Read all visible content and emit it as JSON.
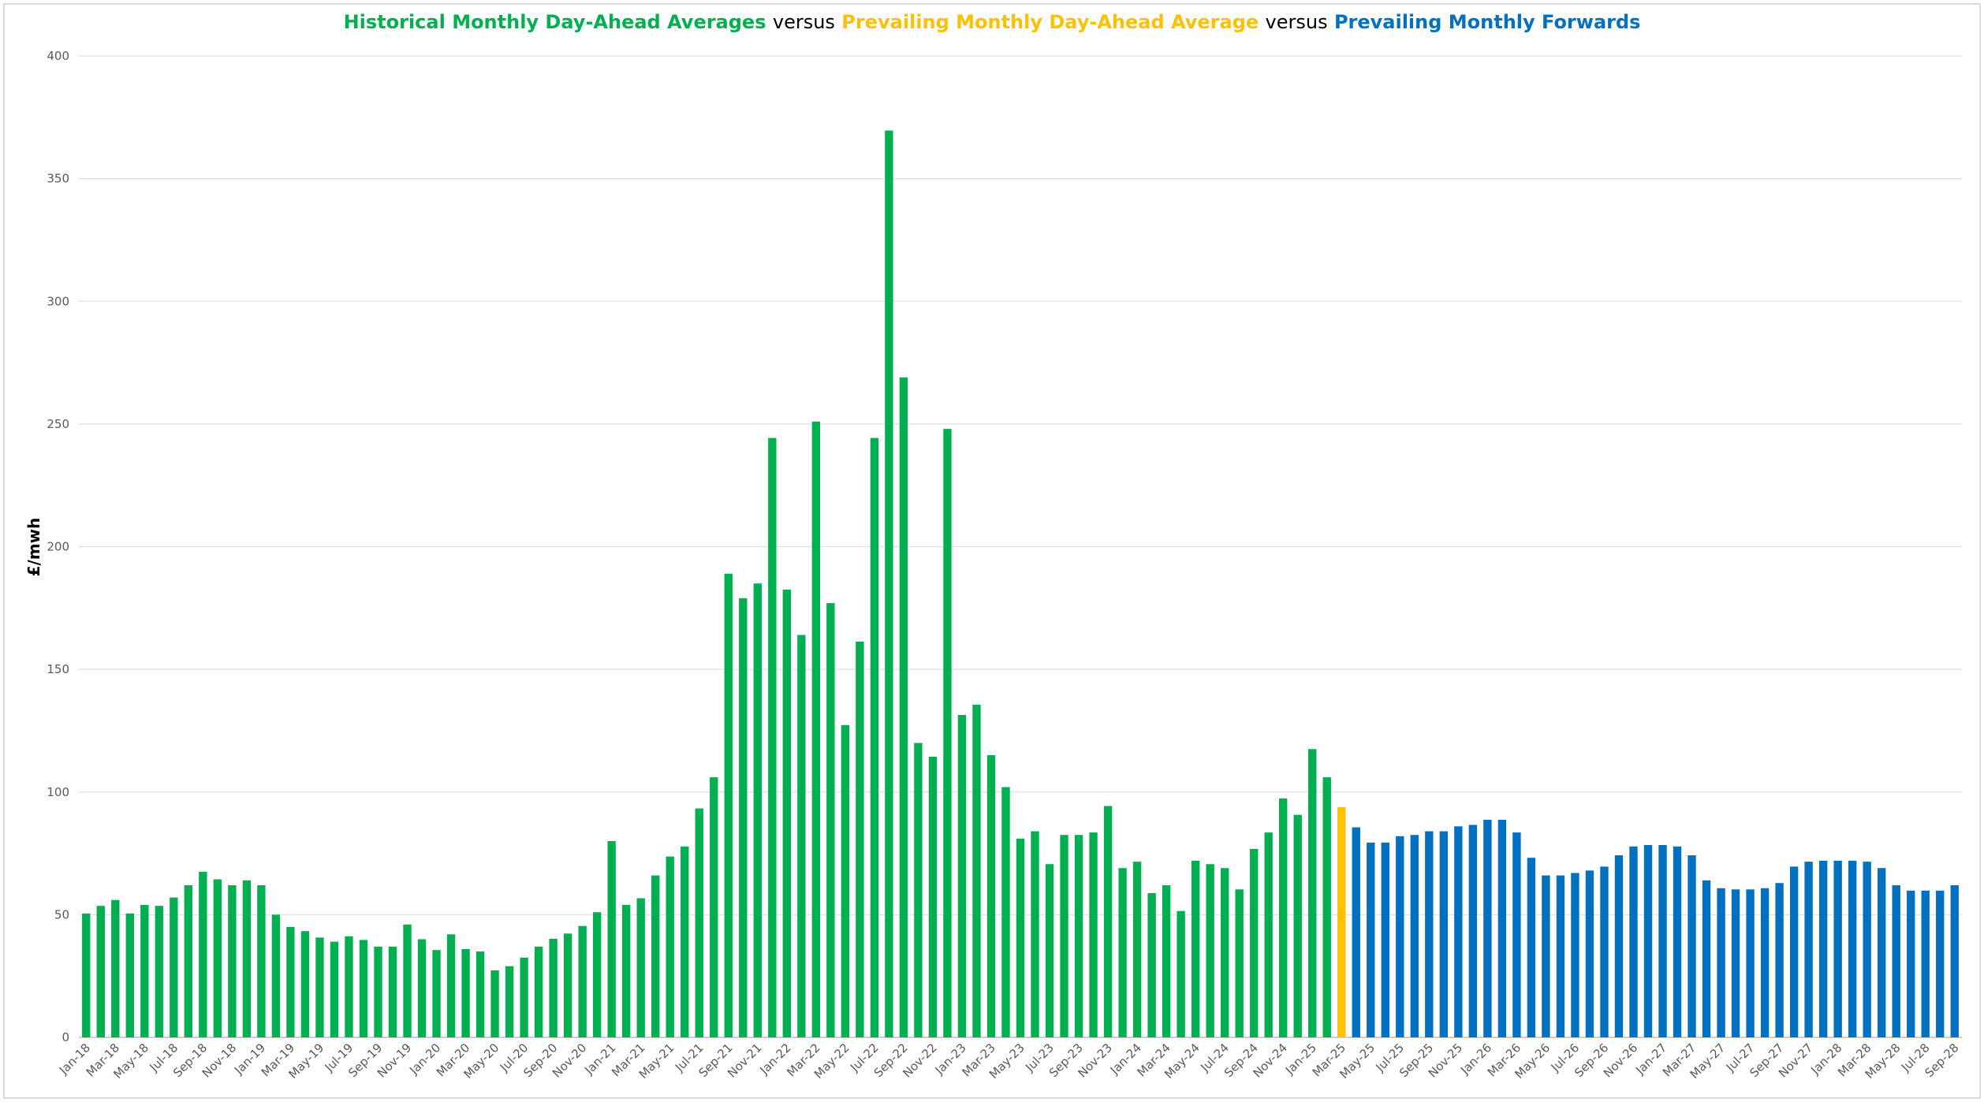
{
  "chart_data": {
    "type": "bar",
    "title_connector": "versus",
    "ylabel": "£/mwh",
    "ylim": [
      0,
      400
    ],
    "yticks": [
      0,
      50,
      100,
      150,
      200,
      250,
      300,
      350,
      400
    ],
    "grid": true,
    "categories": [
      "Jan-18",
      null,
      "Mar-18",
      null,
      "May-18",
      null,
      "Jul-18",
      null,
      "Sep-18",
      null,
      "Nov-18",
      null,
      "Jan-19",
      null,
      "Mar-19",
      null,
      "May-19",
      null,
      "Jul-19",
      null,
      "Sep-19",
      null,
      "Nov-19",
      null,
      "Jan-20",
      null,
      "Mar-20",
      null,
      "May-20",
      null,
      "Jul-20",
      null,
      "Sep-20",
      null,
      "Nov-20",
      null,
      "Jan-21",
      null,
      "Mar-21",
      null,
      "May-21",
      null,
      "Jul-21",
      null,
      "Sep-21",
      null,
      "Nov-21",
      null,
      "Jan-22",
      null,
      "Mar-22",
      null,
      "May-22",
      null,
      "Jul-22",
      null,
      "Sep-22",
      null,
      "Nov-22",
      null,
      "Jan-23",
      null,
      "Mar-23",
      null,
      "May-23",
      null,
      "Jul-23",
      null,
      "Sep-23",
      null,
      "Nov-23",
      null,
      "Jan-24",
      null,
      "Mar-24",
      null,
      "May-24",
      null,
      "Jul-24",
      null,
      "Sep-24",
      null,
      "Nov-24",
      null,
      "Jan-25",
      null,
      "Mar-25",
      null,
      "May-25",
      null,
      "Jul-25",
      null,
      "Sep-25",
      null,
      "Nov-25",
      null,
      "Jan-26",
      null,
      "Mar-26",
      null,
      "May-26",
      null,
      "Jul-26",
      null,
      "Sep-26",
      null,
      "Nov-26",
      null,
      "Jan-27",
      null,
      "Mar-27",
      null,
      "May-27",
      null,
      "Jul-27",
      null,
      "Sep-27",
      null,
      "Nov-27",
      null,
      "Jan-28",
      null,
      "Mar-28",
      null,
      "May-28",
      null,
      "Jul-28",
      null,
      "Sep-28"
    ],
    "series": [
      {
        "name": "Historical Monthly Day-Ahead Averages",
        "color": "#00b050",
        "values": [
          50.5,
          53.6,
          56,
          50.5,
          54,
          53.6,
          57,
          62,
          67.5,
          64.4,
          62,
          64,
          62,
          50,
          45,
          43.3,
          40.7,
          39,
          41.2,
          39.7,
          37,
          37,
          46,
          40,
          35.6,
          42,
          36,
          35,
          27.3,
          29,
          32.5,
          37,
          40.2,
          42.3,
          45.4,
          51,
          80,
          54,
          56.7,
          66,
          73.7,
          77.8,
          93.3,
          106,
          189,
          179,
          185,
          244.3,
          182.5,
          164,
          251,
          177,
          127.3,
          161.3,
          244.3,
          369.6,
          269,
          120,
          114.4,
          248,
          131.4,
          135.6,
          115,
          102,
          81,
          84,
          70.6,
          82.5,
          82.5,
          83.5,
          94.3,
          69,
          71.6,
          58.8,
          62,
          51.5,
          72,
          70.6,
          69,
          60.3,
          76.8,
          83.5,
          97.4,
          90.7,
          117.5,
          106,
          null,
          null,
          null,
          null,
          null,
          null,
          null,
          null,
          null,
          null,
          null,
          null,
          null,
          null,
          null,
          null,
          null,
          null,
          null,
          null,
          null,
          null,
          null,
          null,
          null,
          null,
          null,
          null,
          null,
          null,
          null,
          null,
          null,
          null,
          null,
          null,
          null,
          null,
          null,
          null,
          null,
          null,
          null
        ]
      },
      {
        "name": "Prevailing Monthly Day-Ahead Average",
        "color": "#ffc000",
        "values": [
          null,
          null,
          null,
          null,
          null,
          null,
          null,
          null,
          null,
          null,
          null,
          null,
          null,
          null,
          null,
          null,
          null,
          null,
          null,
          null,
          null,
          null,
          null,
          null,
          null,
          null,
          null,
          null,
          null,
          null,
          null,
          null,
          null,
          null,
          null,
          null,
          null,
          null,
          null,
          null,
          null,
          null,
          null,
          null,
          null,
          null,
          null,
          null,
          null,
          null,
          null,
          null,
          null,
          null,
          null,
          null,
          null,
          null,
          null,
          null,
          null,
          null,
          null,
          null,
          null,
          null,
          null,
          null,
          null,
          null,
          null,
          null,
          null,
          null,
          null,
          null,
          null,
          null,
          null,
          null,
          null,
          null,
          null,
          null,
          null,
          null,
          93.8,
          null,
          null,
          null,
          null,
          null,
          null,
          null,
          null,
          null,
          null,
          null,
          null,
          null,
          null,
          null,
          null,
          null,
          null,
          null,
          null,
          null,
          null,
          null,
          null,
          null,
          null,
          null,
          null,
          null,
          null,
          null,
          null,
          null,
          null,
          null,
          null,
          null,
          null,
          null,
          null,
          null,
          null
        ]
      },
      {
        "name": "Prevailing Monthly Forwards",
        "color": "#0070c0",
        "values": [
          null,
          null,
          null,
          null,
          null,
          null,
          null,
          null,
          null,
          null,
          null,
          null,
          null,
          null,
          null,
          null,
          null,
          null,
          null,
          null,
          null,
          null,
          null,
          null,
          null,
          null,
          null,
          null,
          null,
          null,
          null,
          null,
          null,
          null,
          null,
          null,
          null,
          null,
          null,
          null,
          null,
          null,
          null,
          null,
          null,
          null,
          null,
          null,
          null,
          null,
          null,
          null,
          null,
          null,
          null,
          null,
          null,
          null,
          null,
          null,
          null,
          null,
          null,
          null,
          null,
          null,
          null,
          null,
          null,
          null,
          null,
          null,
          null,
          null,
          null,
          null,
          null,
          null,
          null,
          null,
          null,
          null,
          null,
          null,
          null,
          null,
          null,
          85.6,
          79.4,
          79.4,
          82,
          82.5,
          84,
          84,
          86,
          86.6,
          88.7,
          88.7,
          83.5,
          73.2,
          66,
          66,
          67,
          68,
          69.6,
          74.2,
          77.8,
          78.4,
          78.4,
          77.8,
          74.2,
          64,
          60.8,
          60.3,
          60.3,
          60.8,
          62.9,
          69.6,
          71.6,
          72,
          72,
          72,
          71.6,
          69,
          62,
          59.8,
          59.8,
          59.8,
          62
        ]
      }
    ]
  }
}
